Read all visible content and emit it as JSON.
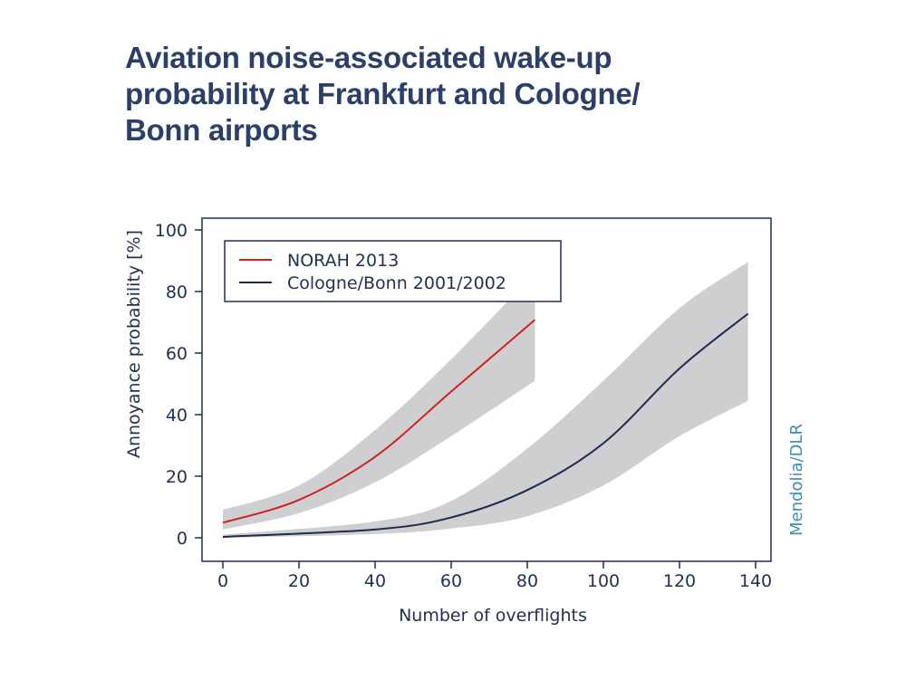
{
  "title_lines": [
    "Aviation noise-associated wake-up",
    "probability at Frankfurt and Cologne/",
    "Bonn airports"
  ],
  "credit": "Mendolia/DLR",
  "chart_data": {
    "type": "line",
    "title": "Aviation noise-associated wake-up probability at Frankfurt and Cologne/Bonn airports",
    "xlabel": "Number of overflights",
    "ylabel": "Annoyance probability [%]",
    "xlim": [
      0,
      140
    ],
    "ylim": [
      0,
      100
    ],
    "xticks": [
      0,
      20,
      40,
      60,
      80,
      100,
      120,
      140
    ],
    "yticks": [
      0,
      20,
      40,
      60,
      80,
      100
    ],
    "grid": false,
    "legend_position": "top-left",
    "series": [
      {
        "name": "NORAH 2013",
        "color": "#d0201e",
        "x": [
          0,
          20,
          40,
          60,
          82
        ],
        "y": [
          4.9,
          12.3,
          26.3,
          47.5,
          70.8
        ],
        "band_upper": [
          9.1,
          17,
          35,
          58,
          86
        ],
        "band_lower": [
          2.7,
          8,
          18,
          33,
          51
        ]
      },
      {
        "name": "Cologne/Bonn 2001/2002",
        "color": "#1c2a4f",
        "x": [
          0,
          40,
          60,
          80,
          100,
          120,
          138
        ],
        "y": [
          0.3,
          2.7,
          6.6,
          15.5,
          30.7,
          55,
          72.8
        ],
        "band_upper": [
          1,
          5.3,
          12,
          29,
          51,
          74.6,
          89.6
        ],
        "band_lower": [
          0,
          1.2,
          3,
          7,
          17,
          33,
          44.5
        ]
      }
    ],
    "band_color": "#cfcfd1"
  }
}
